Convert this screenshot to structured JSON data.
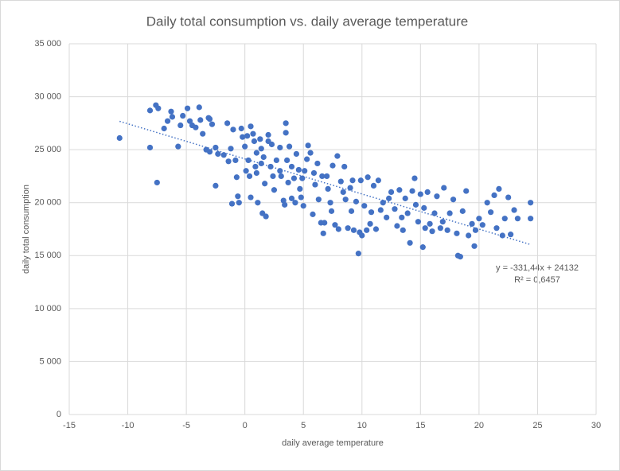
{
  "chart_data": {
    "type": "scatter",
    "title": "Daily total consumption vs. daily average temperature",
    "x_label": "daily average temperature",
    "y_label": "daily total consumption",
    "color": "#4472c4",
    "grid": true,
    "xlim": [
      -15,
      30
    ],
    "xticks": [
      -15,
      -10,
      -5,
      0,
      5,
      10,
      15,
      20,
      25,
      30
    ],
    "ylim": [
      0,
      35000
    ],
    "yticks": [
      0,
      {
        "value": 5000,
        "label": "5 000"
      },
      {
        "value": 10000,
        "label": "10 000"
      },
      {
        "value": 15000,
        "label": "15 000"
      },
      {
        "value": 20000,
        "label": "20 000"
      },
      {
        "value": 25000,
        "label": "25 000"
      },
      {
        "value": 30000,
        "label": "30 000"
      },
      {
        "value": 35000,
        "label": "35 000"
      }
    ],
    "x": [
      -10.7,
      -8.1,
      -8.1,
      -7.6,
      -7.4,
      -7.5,
      -6.9,
      -6.6,
      -6.3,
      -6.2,
      -5.7,
      -5.5,
      -5.3,
      -4.9,
      -4.7,
      -4.5,
      -4.2,
      -3.9,
      -3.8,
      -3.6,
      -3.3,
      -3.1,
      -3.0,
      -3.0,
      -2.8,
      -2.5,
      -2.5,
      -2.3,
      -1.8,
      -1.5,
      -1.4,
      -1.2,
      -1.1,
      -1.0,
      -0.8,
      -0.7,
      -0.6,
      -0.5,
      -0.3,
      -0.2,
      0,
      0.1,
      0.2,
      0.3,
      0.4,
      0.5,
      0.5,
      0.7,
      0.8,
      0.9,
      1.0,
      1.0,
      1.1,
      1.3,
      1.4,
      1.4,
      1.5,
      1.6,
      1.7,
      1.8,
      2.0,
      2.0,
      2.2,
      2.3,
      2.4,
      2.5,
      2.7,
      3.0,
      3.0,
      3.1,
      3.3,
      3.4,
      3.5,
      3.5,
      3.6,
      3.7,
      3.8,
      4.0,
      4.0,
      4.2,
      4.3,
      4.4,
      4.6,
      4.7,
      4.8,
      4.9,
      5.0,
      5.1,
      5.3,
      5.4,
      5.6,
      5.8,
      5.9,
      6.0,
      6.2,
      6.3,
      6.5,
      6.6,
      6.7,
      6.8,
      7.0,
      7.1,
      7.3,
      7.4,
      7.5,
      7.7,
      7.9,
      8.0,
      8.2,
      8.4,
      8.5,
      8.6,
      8.8,
      9.0,
      9.1,
      9.2,
      9.3,
      9.5,
      9.7,
      9.8,
      9.9,
      10.0,
      10.2,
      10.4,
      10.5,
      10.7,
      10.8,
      11.0,
      11.2,
      11.4,
      11.6,
      11.8,
      12.1,
      12.3,
      12.5,
      12.8,
      13.0,
      13.2,
      13.4,
      13.5,
      13.7,
      13.9,
      14.1,
      14.3,
      14.5,
      14.6,
      14.8,
      15.0,
      15.2,
      15.3,
      15.4,
      15.6,
      15.8,
      16.0,
      16.2,
      16.4,
      16.7,
      16.9,
      17.0,
      17.3,
      17.5,
      17.8,
      18.1,
      18.2,
      18.4,
      18.6,
      18.9,
      19.1,
      19.4,
      19.6,
      19.7,
      20.0,
      20.3,
      20.7,
      21.0,
      21.3,
      21.5,
      21.7,
      22.0,
      22.2,
      22.5,
      22.7,
      23.0,
      23.3,
      24.4,
      24.4
    ],
    "values": [
      26100,
      28700,
      25200,
      29200,
      28900,
      21900,
      27000,
      27700,
      28600,
      28100,
      25300,
      27300,
      28200,
      28900,
      27700,
      27300,
      27100,
      29000,
      27800,
      26500,
      25000,
      28000,
      27900,
      24800,
      27400,
      25200,
      21600,
      24600,
      24500,
      27500,
      23900,
      25100,
      19900,
      26900,
      24000,
      22400,
      20600,
      20000,
      27000,
      26200,
      25300,
      23000,
      26300,
      24000,
      22500,
      20500,
      27200,
      26500,
      25800,
      23400,
      24700,
      22800,
      20000,
      26000,
      23700,
      25100,
      19000,
      24300,
      21800,
      18700,
      25800,
      26400,
      23400,
      25500,
      22500,
      21200,
      24000,
      25200,
      23000,
      22500,
      20200,
      19800,
      27500,
      26600,
      24000,
      21900,
      25300,
      23400,
      20400,
      22300,
      20000,
      24600,
      23100,
      21300,
      20500,
      22300,
      19700,
      23000,
      24100,
      25400,
      24700,
      18900,
      22800,
      21700,
      23700,
      20300,
      18100,
      22500,
      17100,
      18100,
      22500,
      21300,
      20000,
      19200,
      23500,
      17900,
      24400,
      17500,
      22000,
      21000,
      23400,
      20300,
      17600,
      21400,
      19200,
      22100,
      17400,
      20100,
      15200,
      17200,
      22100,
      16900,
      19700,
      17400,
      22400,
      18000,
      19100,
      21600,
      17500,
      22100,
      19300,
      20000,
      18600,
      20400,
      21000,
      19400,
      17800,
      21200,
      18600,
      17400,
      20400,
      19000,
      16200,
      21100,
      22300,
      19800,
      18200,
      20800,
      15800,
      19500,
      17600,
      21000,
      18000,
      17300,
      19000,
      20600,
      17600,
      18200,
      21400,
      17400,
      19000,
      20300,
      17100,
      15000,
      14900,
      19200,
      21100,
      16900,
      18000,
      15900,
      17400,
      18500,
      17900,
      20000,
      19100,
      20700,
      17600,
      21300,
      16900,
      18500,
      20500,
      17000,
      19300,
      18500,
      20000,
      18500
    ],
    "trendline": {
      "slope": -331.44,
      "intercept": 24132,
      "xlim": [
        -10.7,
        24.4
      ],
      "equation": "y = -331,44x + 24132",
      "r_squared": 0.6457,
      "r_squared_label": "R² = 0,6457"
    }
  }
}
